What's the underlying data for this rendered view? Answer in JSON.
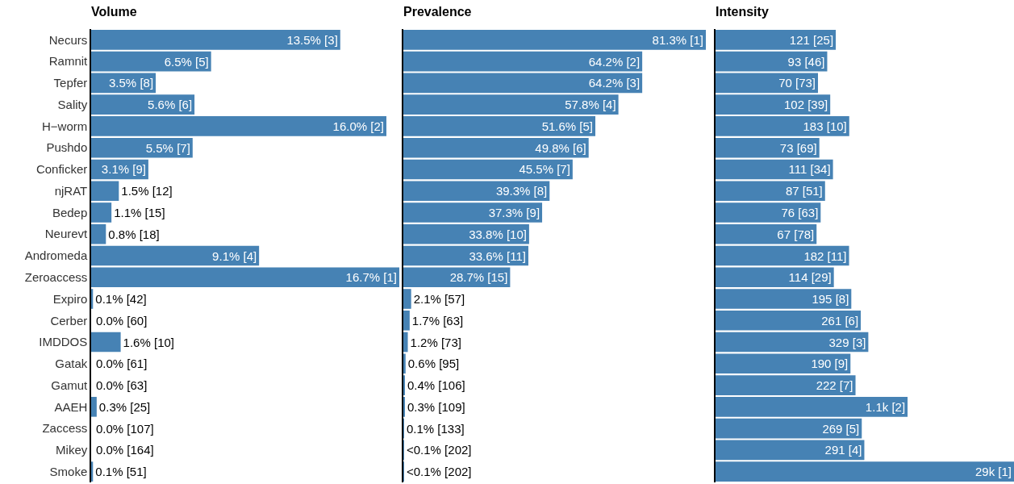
{
  "chart_data": [
    {
      "type": "bar",
      "orientation": "horizontal",
      "title": "Volume",
      "tick_labels": "y",
      "color": "#4682b4",
      "xlim": [
        0,
        16.7
      ],
      "categories": [
        "Necurs",
        "Ramnit",
        "Tepfer",
        "Sality",
        "H−worm",
        "Pushdo",
        "Conficker",
        "njRAT",
        "Bedep",
        "Neurevt",
        "Andromeda",
        "Zeroaccess",
        "Expiro",
        "Cerber",
        "IMDDOS",
        "Gatak",
        "Gamut",
        "AAEH",
        "Zaccess",
        "Mikey",
        "Smoke"
      ],
      "values": [
        13.5,
        6.5,
        3.5,
        5.6,
        16.0,
        5.5,
        3.1,
        1.5,
        1.1,
        0.8,
        9.1,
        16.7,
        0.1,
        0.0,
        1.6,
        0.0,
        0.0,
        0.3,
        0.0,
        0.0,
        0.1
      ],
      "value_labels": [
        "13.5% [3]",
        "6.5% [5]",
        "3.5% [8]",
        "5.6% [6]",
        "16.0% [2]",
        "5.5% [7]",
        "3.1% [9]",
        "1.5% [12]",
        "1.1% [15]",
        "0.8% [18]",
        "9.1% [4]",
        "16.7% [1]",
        "0.1% [42]",
        "0.0% [60]",
        "1.6% [10]",
        "0.0% [61]",
        "0.0% [63]",
        "0.3% [25]",
        "0.0% [107]",
        "0.0% [164]",
        "0.1% [51]"
      ]
    },
    {
      "type": "bar",
      "orientation": "horizontal",
      "title": "Prevalence",
      "tick_labels": false,
      "color": "#4682b4",
      "xlim": [
        0,
        81.3
      ],
      "categories": [
        null,
        null,
        null,
        null,
        null,
        null,
        null,
        null,
        null,
        null,
        null,
        null,
        null,
        null,
        null,
        null,
        null,
        null,
        null,
        null,
        null
      ],
      "values": [
        81.3,
        64.2,
        64.2,
        57.8,
        51.6,
        49.8,
        45.5,
        39.3,
        37.3,
        33.8,
        33.6,
        28.7,
        2.1,
        1.7,
        1.2,
        0.6,
        0.4,
        0.3,
        0.1,
        0.05,
        0.05
      ],
      "value_labels": [
        "81.3% [1]",
        "64.2% [2]",
        "64.2% [3]",
        "57.8% [4]",
        "51.6% [5]",
        "49.8% [6]",
        "45.5% [7]",
        "39.3% [8]",
        "37.3% [9]",
        "33.8% [10]",
        "33.6% [11]",
        "28.7% [15]",
        "2.1% [57]",
        "1.7% [63]",
        "1.2% [73]",
        "0.6% [95]",
        "0.4% [106]",
        "0.3% [109]",
        "0.1% [133]",
        "<0.1% [202]",
        "<0.1% [202]"
      ]
    },
    {
      "type": "bar",
      "orientation": "horizontal",
      "title": "Intensity",
      "tick_labels": false,
      "color": "#4682b4",
      "log": "x",
      "xlim": [
        3,
        29000
      ],
      "categories": [
        null,
        null,
        null,
        null,
        null,
        null,
        null,
        null,
        null,
        null,
        null,
        null,
        null,
        null,
        null,
        null,
        null,
        null,
        null,
        null,
        null
      ],
      "values": [
        121,
        93,
        70,
        102,
        183,
        73,
        111,
        87,
        76,
        67,
        182,
        114,
        195,
        261,
        329,
        190,
        222,
        1100,
        269,
        291,
        29000
      ],
      "value_labels": [
        "121 [25]",
        "93 [46]",
        "70 [73]",
        "102 [39]",
        "183 [10]",
        "73 [69]",
        "111 [34]",
        "87 [51]",
        "76 [63]",
        "67 [78]",
        "182 [11]",
        "114 [29]",
        "195 [8]",
        "261 [6]",
        "329 [3]",
        "190 [9]",
        "222 [7]",
        "1.1k [2]",
        "269 [5]",
        "291 [4]",
        "29k [1]"
      ]
    }
  ]
}
